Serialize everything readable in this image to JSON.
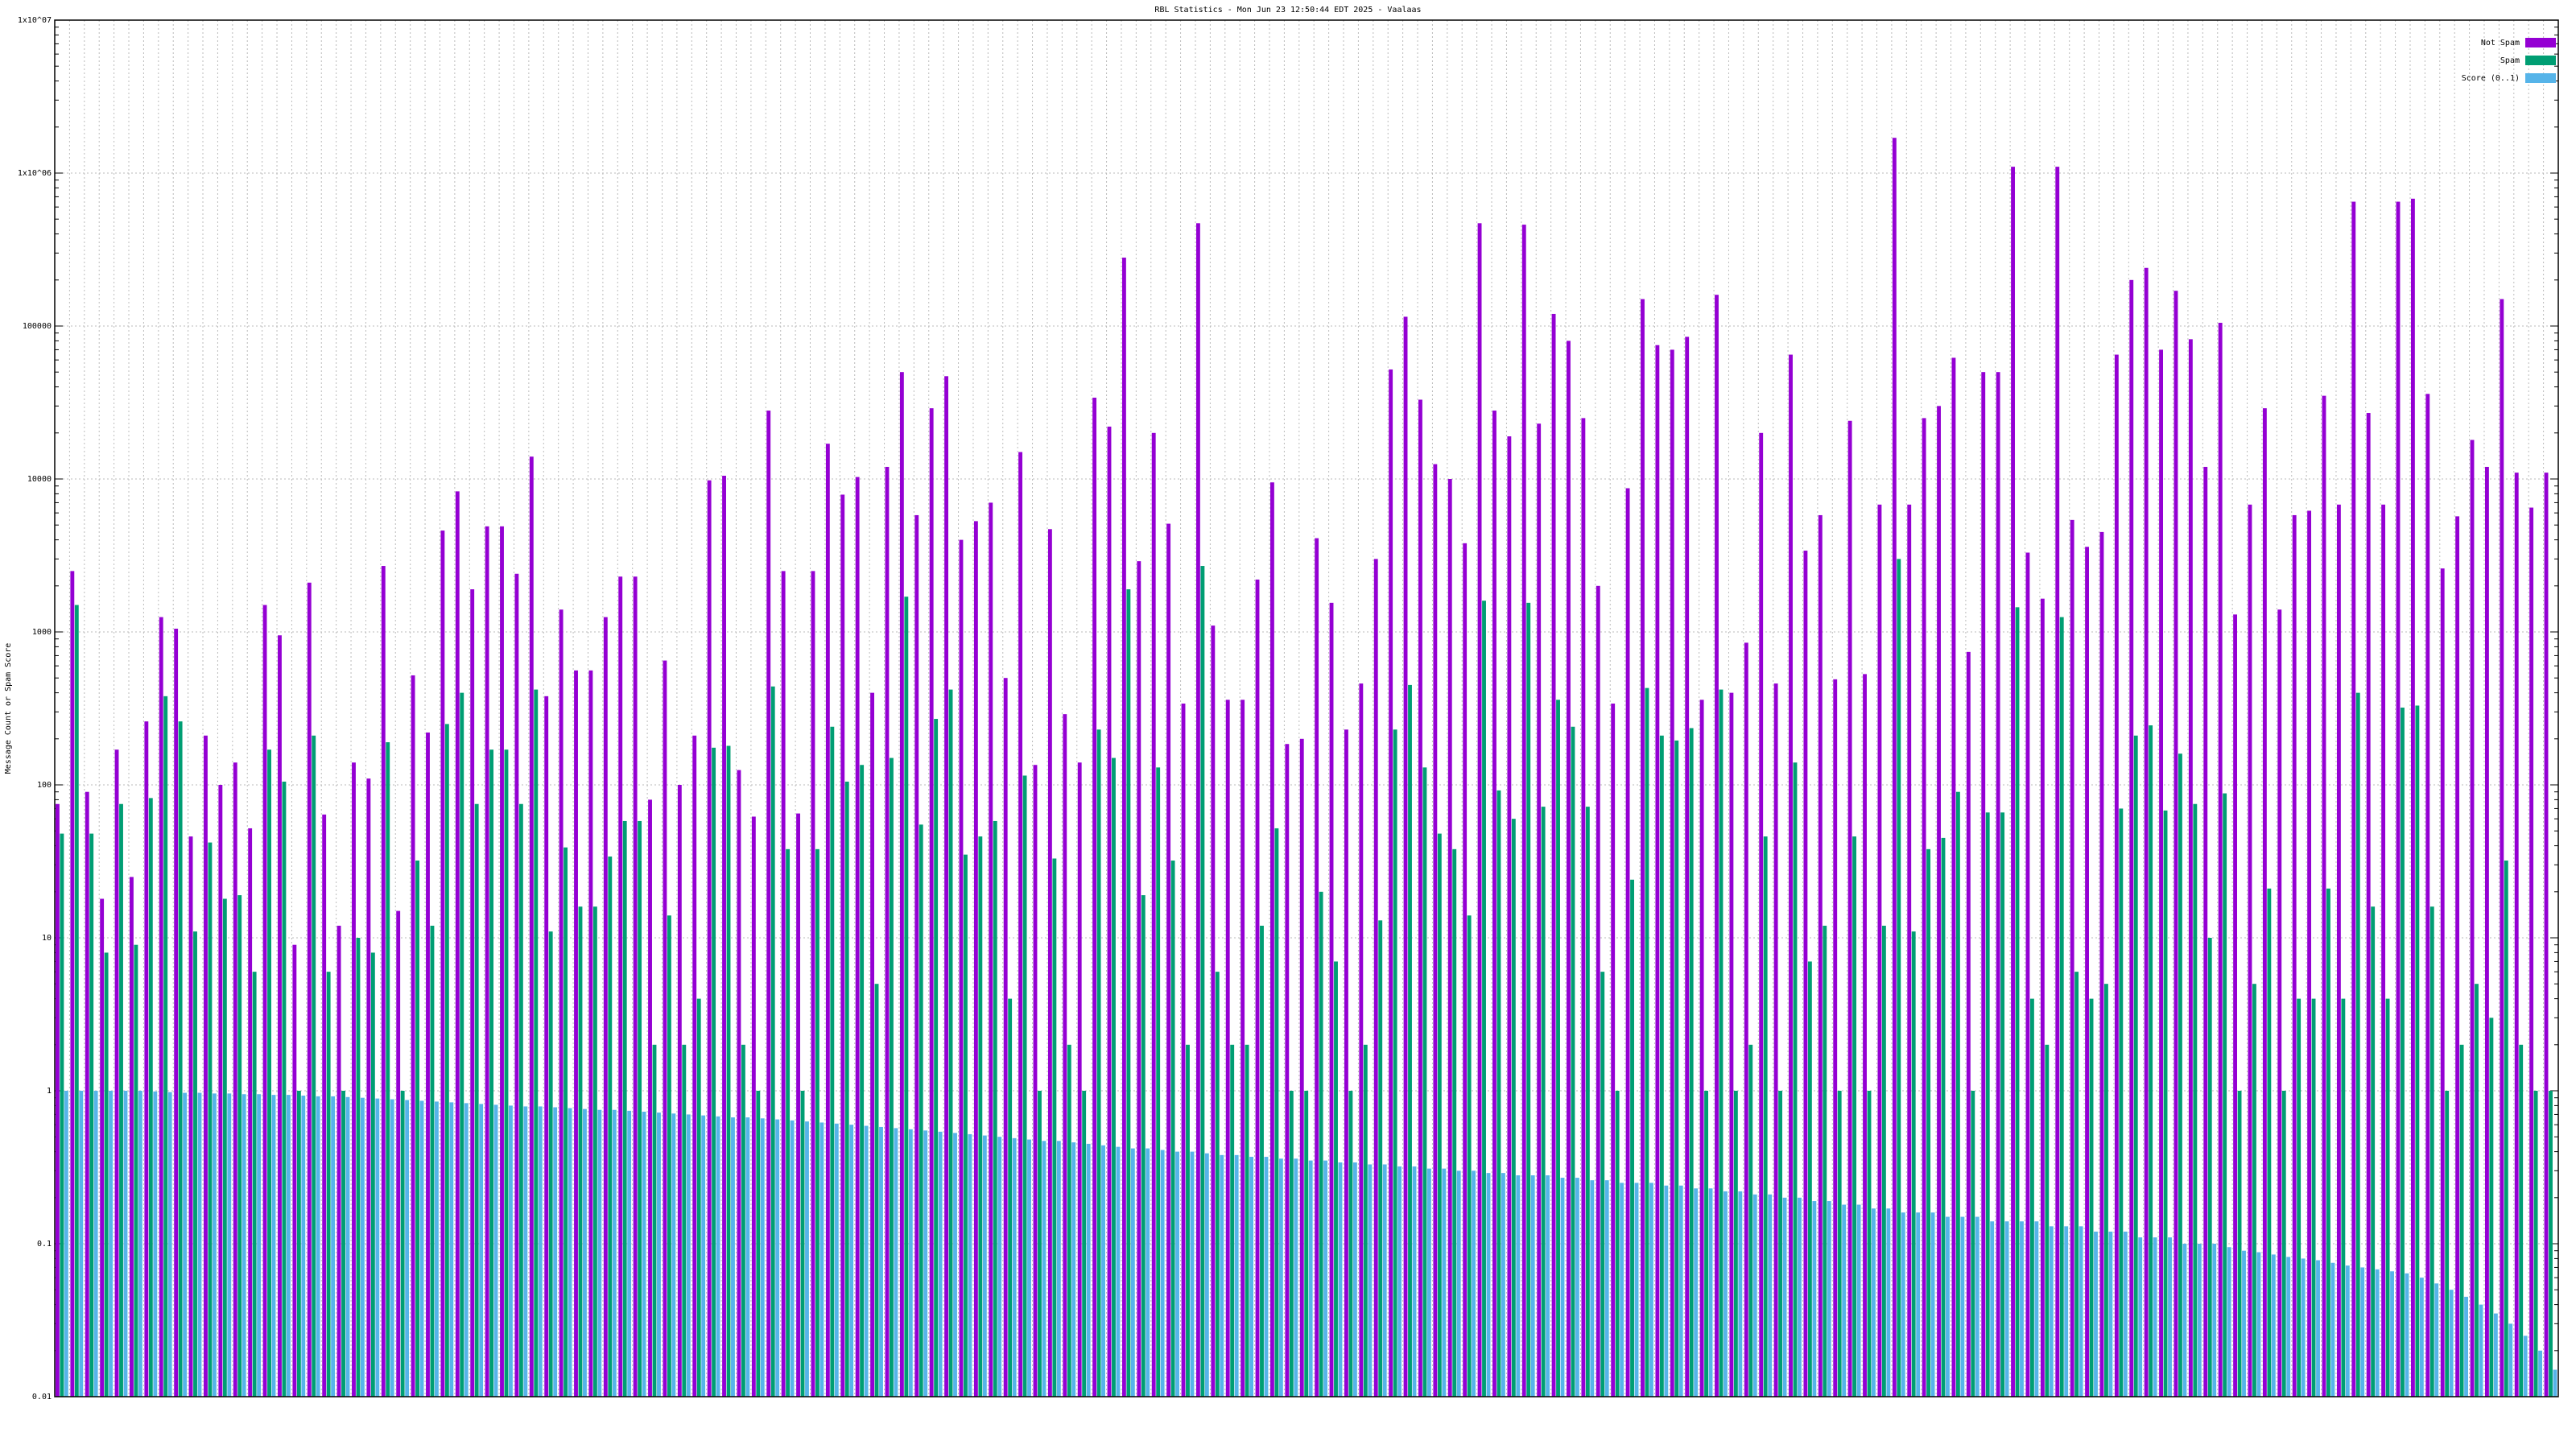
{
  "chart_data": {
    "type": "bar",
    "title": "RBL Statistics - Mon Jun 23 12:50:44 EDT 2025 - Vaalaas",
    "y_label": "Message Count or Spam Score",
    "log_scale": true,
    "grid": true,
    "legend": "top-right",
    "ylim": [
      0.01,
      10000000
    ],
    "yticks": [
      0.01,
      0.1,
      1,
      10,
      100,
      1000,
      10000,
      100000,
      {
        "value": 1000000,
        "label": "1x10^06"
      },
      {
        "value": 10000000,
        "label": "1x10^07"
      }
    ],
    "categories": [
      null,
      null,
      null,
      null,
      null,
      null,
      null,
      null,
      null,
      null,
      null,
      null,
      null,
      null,
      null,
      null,
      null,
      null,
      null,
      null,
      null,
      null,
      null,
      null,
      null,
      null,
      null,
      null,
      null,
      null,
      null,
      null,
      null,
      null,
      null,
      null,
      null,
      null,
      null,
      null,
      null,
      null,
      null,
      null,
      null,
      null,
      null,
      null,
      null,
      null,
      null,
      null,
      null,
      null,
      null,
      null,
      null,
      null,
      null,
      null,
      null,
      null,
      null,
      null,
      null,
      null,
      null,
      null,
      null,
      null,
      null,
      null,
      null,
      null,
      null,
      null,
      null,
      null,
      null,
      null,
      null,
      null,
      null,
      null,
      null,
      null,
      null,
      null,
      null,
      null,
      null,
      null,
      null,
      null,
      null,
      null,
      null,
      null,
      null,
      null,
      null,
      null,
      null,
      null,
      null,
      null,
      null,
      null,
      null,
      null,
      null,
      null,
      null,
      null,
      null,
      null,
      null,
      null,
      null,
      null,
      null,
      null,
      null,
      null,
      null,
      null,
      null,
      null,
      null,
      null,
      null,
      null,
      null,
      null,
      null,
      null,
      null,
      null,
      null,
      null,
      null,
      null,
      null,
      null,
      null,
      null,
      null,
      null,
      null,
      null,
      null,
      null,
      null,
      null,
      null,
      null,
      null,
      null,
      null,
      null,
      null,
      null,
      null,
      null,
      null,
      null,
      null,
      null,
      null
    ],
    "series": [
      {
        "name": "Not Spam",
        "color": "#9400d3",
        "values": [
          75,
          2500,
          90,
          18,
          170,
          25,
          260,
          1250,
          1050,
          46,
          210,
          100,
          140,
          52,
          1500,
          950,
          9,
          2100,
          64,
          12,
          140,
          110,
          2700,
          15,
          520,
          220,
          4600,
          8300,
          1900,
          4900,
          4900,
          2400,
          14000,
          380,
          1400,
          560,
          560,
          1250,
          2300,
          2300,
          80,
          650,
          100,
          210,
          9800,
          10500,
          125,
          62,
          28000,
          2500,
          65,
          2500,
          17000,
          7900,
          10300,
          400,
          12000,
          50000,
          5800,
          29000,
          47000,
          4000,
          5300,
          7000,
          500,
          15000,
          135,
          4700,
          290,
          140,
          34000,
          22000,
          280000,
          2900,
          20000,
          5100,
          340,
          470000,
          1100,
          360,
          360,
          2200,
          9500,
          185,
          200,
          4100,
          1550,
          230,
          460,
          3000,
          52000,
          115000,
          33000,
          12500,
          10000,
          3800,
          470000,
          28000,
          19000,
          460000,
          23000,
          120000,
          80000,
          25000,
          2000,
          340,
          8700,
          150000,
          75000,
          70000,
          85000,
          360,
          160000,
          400,
          850,
          20000,
          460,
          65000,
          3400,
          5800,
          490,
          24000,
          530,
          6800,
          1700000,
          6800,
          25000,
          30000,
          62000,
          740,
          50000,
          50000,
          1100000,
          3300,
          1650,
          1100000,
          5400,
          3600,
          4500,
          65000,
          200000,
          240000,
          70000,
          170000,
          82000,
          12000,
          105000,
          1300,
          6800,
          29000,
          1400,
          5800,
          6200,
          35000,
          6800,
          650000,
          27000,
          6800,
          650000,
          680000,
          36000,
          2600,
          5700,
          18000,
          12000,
          150000,
          11000,
          6500,
          11000
        ]
      },
      {
        "name": "Spam",
        "color": "#009e73",
        "values": [
          48,
          1500,
          48,
          8,
          75,
          9,
          82,
          380,
          260,
          11,
          42,
          18,
          19,
          6,
          170,
          105,
          1,
          210,
          6,
          1,
          10,
          8,
          190,
          1,
          32,
          12,
          250,
          400,
          75,
          170,
          170,
          75,
          420,
          11,
          39,
          16,
          16,
          34,
          58,
          58,
          2,
          14,
          2,
          4,
          175,
          180,
          2,
          1,
          440,
          38,
          1,
          38,
          240,
          105,
          135,
          5,
          150,
          1700,
          55,
          270,
          420,
          35,
          46,
          58,
          4,
          115,
          1,
          33,
          2,
          1,
          230,
          150,
          1900,
          19,
          130,
          32,
          2,
          2700,
          6,
          2,
          2,
          12,
          52,
          1,
          1,
          20,
          7,
          1,
          2,
          13,
          230,
          450,
          130,
          48,
          38,
          14,
          1600,
          92,
          60,
          1550,
          72,
          360,
          240,
          72,
          6,
          1,
          24,
          430,
          210,
          195,
          235,
          1,
          420,
          1,
          2,
          46,
          1,
          140,
          7,
          12,
          1,
          46,
          1,
          12,
          3000,
          11,
          38,
          45,
          90,
          1,
          66,
          66,
          1450,
          4,
          2,
          1250,
          6,
          4,
          5,
          70,
          210,
          245,
          68,
          160,
          75,
          10,
          88,
          1,
          5,
          21,
          1,
          4,
          4,
          21,
          4,
          400,
          16,
          4,
          320,
          330,
          16,
          1,
          2,
          5,
          3,
          32,
          2,
          1,
          1
        ]
      },
      {
        "name": "Score (0..1)",
        "color": "#56b4e9",
        "values": [
          1,
          1,
          1,
          1,
          1,
          1,
          0.99,
          0.98,
          0.97,
          0.97,
          0.96,
          0.96,
          0.95,
          0.95,
          0.94,
          0.94,
          0.93,
          0.92,
          0.92,
          0.91,
          0.9,
          0.89,
          0.88,
          0.87,
          0.86,
          0.85,
          0.84,
          0.83,
          0.82,
          0.81,
          0.8,
          0.79,
          0.79,
          0.78,
          0.77,
          0.76,
          0.75,
          0.75,
          0.74,
          0.73,
          0.72,
          0.71,
          0.7,
          0.69,
          0.68,
          0.67,
          0.67,
          0.66,
          0.65,
          0.64,
          0.63,
          0.62,
          0.61,
          0.6,
          0.59,
          0.58,
          0.57,
          0.56,
          0.55,
          0.54,
          0.53,
          0.52,
          0.51,
          0.5,
          0.49,
          0.48,
          0.47,
          0.47,
          0.46,
          0.45,
          0.44,
          0.43,
          0.42,
          0.42,
          0.41,
          0.4,
          0.4,
          0.39,
          0.38,
          0.38,
          0.37,
          0.37,
          0.36,
          0.36,
          0.35,
          0.35,
          0.34,
          0.34,
          0.33,
          0.33,
          0.32,
          0.32,
          0.31,
          0.31,
          0.3,
          0.3,
          0.29,
          0.29,
          0.28,
          0.28,
          0.28,
          0.27,
          0.27,
          0.26,
          0.26,
          0.25,
          0.25,
          0.25,
          0.24,
          0.24,
          0.23,
          0.23,
          0.22,
          0.22,
          0.21,
          0.21,
          0.2,
          0.2,
          0.19,
          0.19,
          0.18,
          0.18,
          0.17,
          0.17,
          0.16,
          0.16,
          0.16,
          0.15,
          0.15,
          0.15,
          0.14,
          0.14,
          0.14,
          0.14,
          0.13,
          0.13,
          0.13,
          0.12,
          0.12,
          0.12,
          0.11,
          0.11,
          0.11,
          0.1,
          0.1,
          0.1,
          0.095,
          0.09,
          0.088,
          0.085,
          0.082,
          0.08,
          0.078,
          0.075,
          0.072,
          0.07,
          0.068,
          0.066,
          0.064,
          0.06,
          0.055,
          0.05,
          0.045,
          0.04,
          0.035,
          0.03,
          0.025,
          0.02,
          0.015
        ]
      }
    ]
  }
}
